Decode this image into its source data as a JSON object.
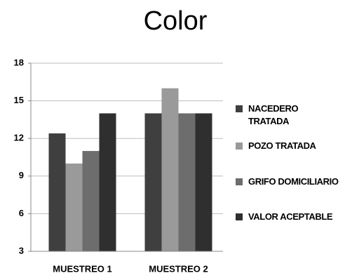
{
  "chart_data": {
    "type": "bar",
    "title": "Color",
    "categories": [
      "MUESTREO 1",
      "MUESTREO 2"
    ],
    "series": [
      {
        "name": "NACEDERO TRATADA",
        "color": "#3f3f3f",
        "values": [
          12.4,
          14
        ]
      },
      {
        "name": "POZO TRATADA",
        "color": "#9a9a9a",
        "values": [
          10,
          16
        ]
      },
      {
        "name": "GRIFO DOMICILIARIO",
        "color": "#6d6d6d",
        "values": [
          11,
          14
        ]
      },
      {
        "name": "VALOR ACEPTABLE",
        "color": "#2f2f2f",
        "values": [
          14,
          14
        ]
      }
    ],
    "ylim": [
      3,
      18
    ],
    "yticks": [
      3,
      6,
      9,
      12,
      15,
      18
    ],
    "grid": true,
    "legend": "right"
  }
}
